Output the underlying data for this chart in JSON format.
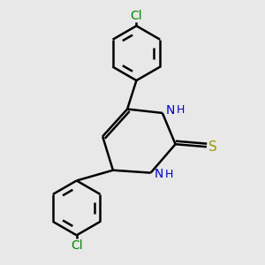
{
  "bg_color": "#e8e8e8",
  "bond_color": "#000000",
  "N_color": "#0000cc",
  "S_color": "#999900",
  "Cl_color": "#008800",
  "line_width": 1.8,
  "font_size": 10,
  "figsize": [
    3.0,
    3.0
  ],
  "dpi": 100,
  "xlim": [
    0,
    10
  ],
  "ylim": [
    0,
    10
  ]
}
